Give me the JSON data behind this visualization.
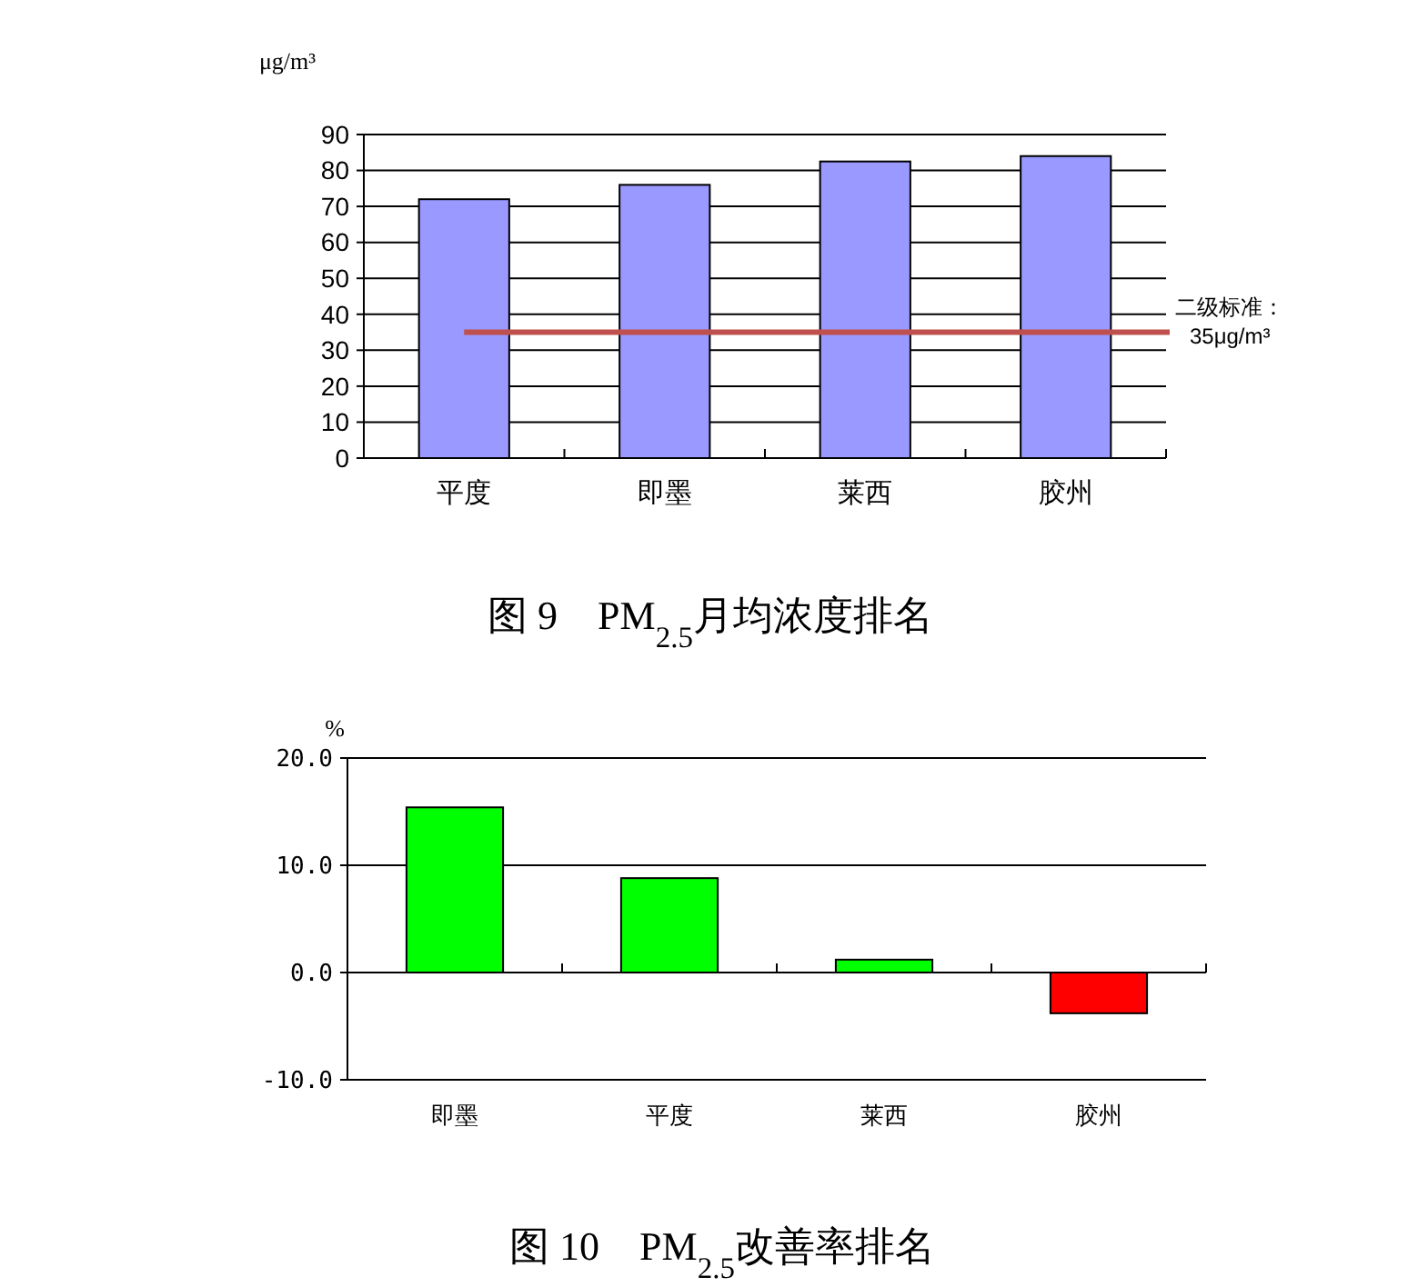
{
  "chart_data": [
    {
      "type": "bar",
      "title": "图 9　PM$_{2.5}$月均浓度排名",
      "ylabel": "μg/m³",
      "categories": [
        "平度",
        "即墨",
        "莱西",
        "胶州"
      ],
      "values": [
        72,
        76,
        82.5,
        84
      ],
      "color": "#9999ff",
      "ylim": [
        0,
        90
      ],
      "yticks": [
        0,
        10,
        20,
        30,
        40,
        50,
        60,
        70,
        80,
        90
      ],
      "grid": "y",
      "ref_lines": [
        {
          "axis": "y",
          "value": 35,
          "label": "二级标准：\n35μg/m³",
          "color": "#c0504d"
        }
      ]
    },
    {
      "type": "bar",
      "title": "图 10　PM$_{2.5}$改善率排名",
      "ylabel": "%",
      "categories": [
        "即墨",
        "平度",
        "莱西",
        "胶州"
      ],
      "values": [
        15.4,
        8.8,
        1.2,
        -3.8
      ],
      "colors": [
        "#00ff00",
        "#00ff00",
        "#00ff00",
        "#ff0000"
      ],
      "ylim": [
        -10,
        20
      ],
      "yticks": [
        {
          "value": -10,
          "label": "-10.0"
        },
        {
          "value": 0,
          "label": "0.0"
        },
        {
          "value": 10,
          "label": "10.0"
        },
        {
          "value": 20,
          "label": "20.0"
        }
      ],
      "grid": "y"
    }
  ]
}
